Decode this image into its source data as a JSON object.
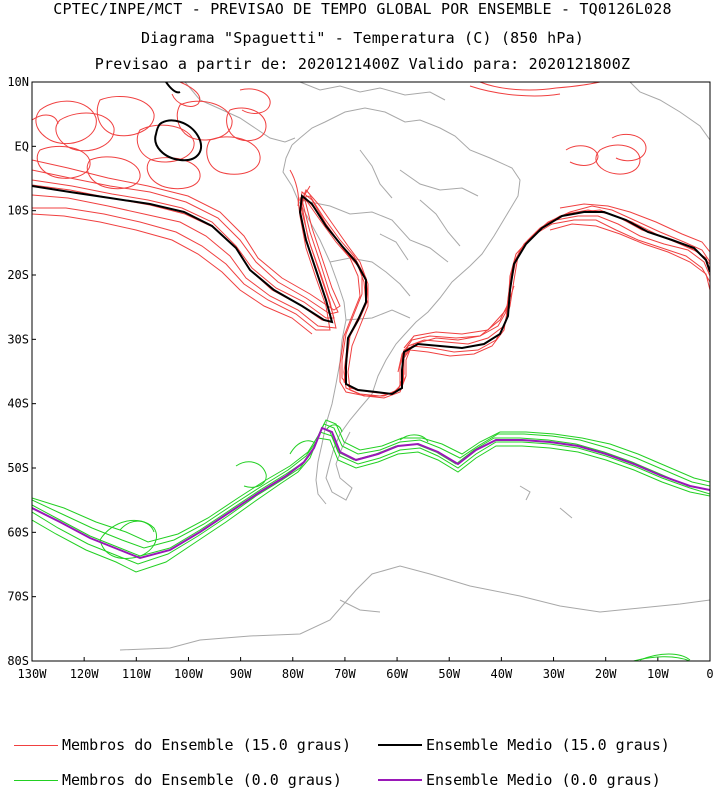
{
  "header": {
    "line1": "CPTEC/INPE/MCT - PREVISAO DE TEMPO GLOBAL POR ENSEMBLE - TQ0126L028",
    "line2": "Diagrama \"Spaguetti\" - Temperatura (C) (850 hPa)",
    "line3": "Previsao a partir de: 2020121400Z  Valido para: 2020121800Z"
  },
  "map": {
    "lat_labels": [
      "10N",
      "EQ",
      "10S",
      "20S",
      "30S",
      "40S",
      "50S",
      "60S",
      "70S",
      "80S"
    ],
    "lon_labels": [
      "130W",
      "120W",
      "110W",
      "100W",
      "90W",
      "80W",
      "70W",
      "60W",
      "50W",
      "40W",
      "30W",
      "20W",
      "10W",
      "0"
    ],
    "colors": {
      "member_15": "#f04040",
      "mean_15": "#000000",
      "member_0": "#22d022",
      "mean_0": "#9a18b8",
      "coast": "#a8a8a8"
    }
  },
  "legend": {
    "members_15": "Membros do Ensemble (15.0 graus)",
    "mean_15": "Ensemble Medio (15.0 graus)",
    "members_0": "Membros do Ensemble (0.0 graus)",
    "mean_0": "Ensemble Medio (0.0 graus)"
  }
}
